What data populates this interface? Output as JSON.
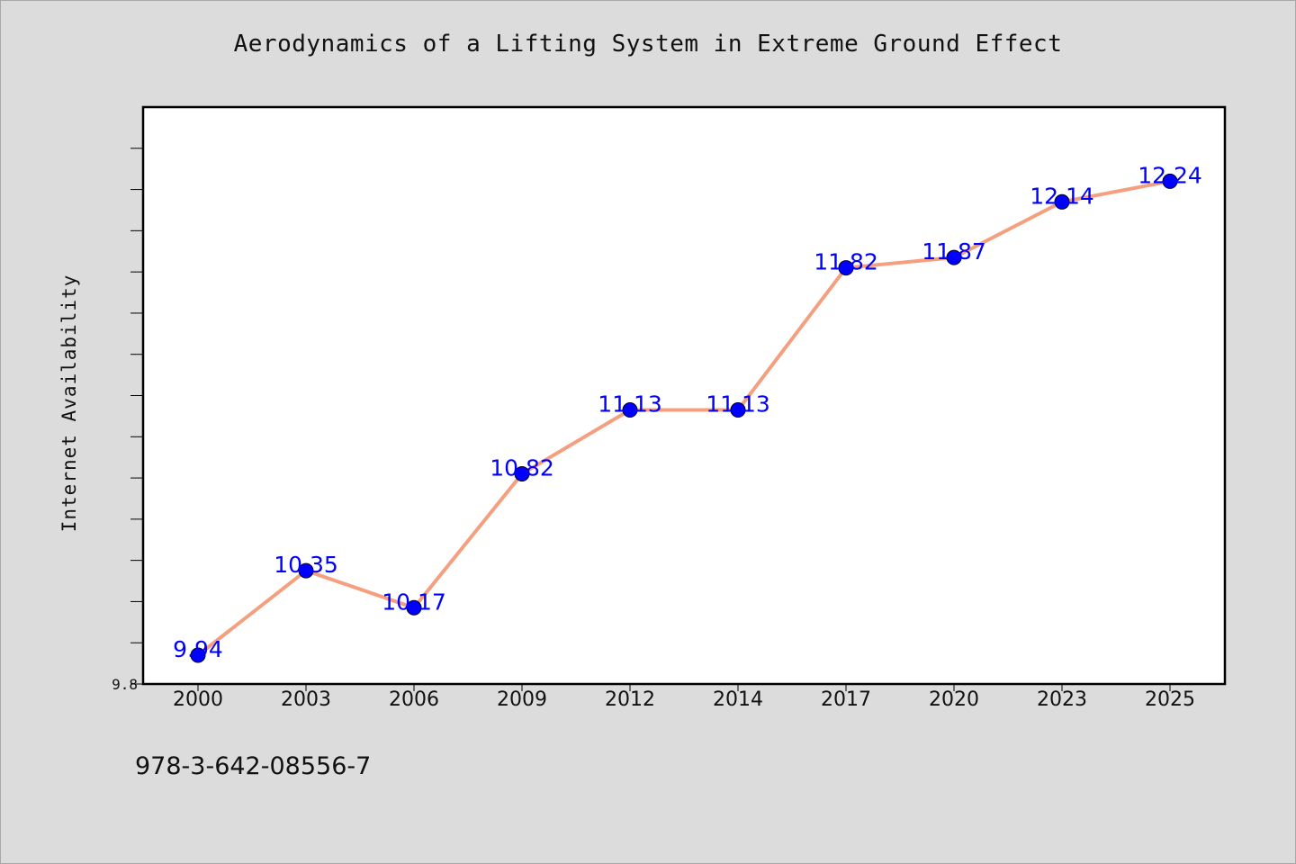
{
  "chart_data": {
    "type": "line",
    "title": "Aerodynamics of a Lifting System in Extreme Ground Effect",
    "xlabel": "",
    "ylabel": "Internet Availability",
    "categories": [
      "2000",
      "2003",
      "2006",
      "2009",
      "2012",
      "2014",
      "2017",
      "2020",
      "2023",
      "2025"
    ],
    "values": [
      9.94,
      10.35,
      10.17,
      10.82,
      11.13,
      11.13,
      11.82,
      11.87,
      12.14,
      12.24
    ],
    "value_labels": [
      "9.94",
      "10.35",
      "10.17",
      "10.82",
      "11.13",
      "11.13",
      "11.82",
      "11.87",
      "12.14",
      "12.24"
    ],
    "y_tick_labels": [
      "9.8"
    ],
    "ylim": [
      9.8,
      12.6
    ],
    "grid": false,
    "line_color": "#f4a080",
    "marker_color": "#0000ff",
    "label_color": "#0000ff"
  },
  "footer": {
    "code": "978-3-642-08556-7"
  }
}
